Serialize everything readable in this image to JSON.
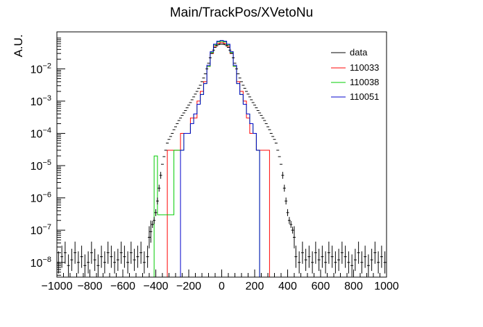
{
  "chart_data": {
    "type": "line",
    "title": "Main/TrackPos/XVetoNu",
    "xlabel": "",
    "ylabel": "A.U.",
    "xlim": [
      -1000,
      1000
    ],
    "ylim": [
      3.5e-09,
      0.14
    ],
    "yscale": "log",
    "grid": false,
    "legend_position": "top-right",
    "x_ticks": [
      -1000,
      -800,
      -600,
      -400,
      -200,
      0,
      200,
      400,
      600,
      800,
      1000
    ],
    "x_tick_labels": [
      "−1000",
      "−800",
      "−600",
      "−400",
      "−200",
      "0",
      "200",
      "400",
      "600",
      "800",
      "1000"
    ],
    "y_ticks": [
      {
        "value": 1e-08,
        "base": "10",
        "exp": "−8"
      },
      {
        "value": 1e-07,
        "base": "10",
        "exp": "−7"
      },
      {
        "value": 1e-06,
        "base": "10",
        "exp": "−6"
      },
      {
        "value": 1e-05,
        "base": "10",
        "exp": "−5"
      },
      {
        "value": 0.0001,
        "base": "10",
        "exp": "−4"
      },
      {
        "value": 0.001,
        "base": "10",
        "exp": "−3"
      },
      {
        "value": 0.01,
        "base": "10",
        "exp": "−2"
      }
    ],
    "data_series": {
      "name": "data",
      "color": "#000000",
      "points": [
        [
          -380,
          2e-06
        ],
        [
          -370,
          5e-06
        ],
        [
          -360,
          1.1e-05
        ],
        [
          -350,
          1.9e-05
        ],
        [
          -340,
          3e-05
        ],
        [
          -330,
          5e-05
        ],
        [
          -320,
          6.5e-05
        ],
        [
          -310,
          8e-05
        ],
        [
          -300,
          0.0001
        ],
        [
          -290,
          0.00013
        ],
        [
          -280,
          0.00016
        ],
        [
          -270,
          0.0002
        ],
        [
          -260,
          0.00025
        ],
        [
          -250,
          0.0003
        ],
        [
          -240,
          0.00036
        ],
        [
          -230,
          0.00043
        ],
        [
          -220,
          0.00051
        ],
        [
          -210,
          0.00062
        ],
        [
          -200,
          0.00075
        ],
        [
          -190,
          0.0009
        ],
        [
          -180,
          0.0011
        ],
        [
          -170,
          0.00135
        ],
        [
          -160,
          0.00165
        ],
        [
          -150,
          0.002
        ],
        [
          -140,
          0.0025
        ],
        [
          -130,
          0.0031
        ],
        [
          -120,
          0.004
        ],
        [
          -110,
          0.0052
        ],
        [
          -100,
          0.007
        ],
        [
          -90,
          0.01
        ],
        [
          -80,
          0.015
        ],
        [
          -70,
          0.022
        ],
        [
          -60,
          0.03
        ],
        [
          -50,
          0.038
        ],
        [
          -40,
          0.046
        ],
        [
          -30,
          0.052
        ],
        [
          -20,
          0.056
        ],
        [
          -10,
          0.058
        ],
        [
          0,
          0.059
        ],
        [
          10,
          0.058
        ],
        [
          20,
          0.056
        ],
        [
          30,
          0.052
        ],
        [
          40,
          0.046
        ],
        [
          50,
          0.038
        ],
        [
          60,
          0.03
        ],
        [
          70,
          0.022
        ],
        [
          80,
          0.015
        ],
        [
          90,
          0.01
        ],
        [
          100,
          0.007
        ],
        [
          110,
          0.0052
        ],
        [
          120,
          0.004
        ],
        [
          130,
          0.0031
        ],
        [
          140,
          0.0025
        ],
        [
          150,
          0.002
        ],
        [
          160,
          0.00165
        ],
        [
          170,
          0.00135
        ],
        [
          180,
          0.0011
        ],
        [
          190,
          0.0009
        ],
        [
          200,
          0.00075
        ],
        [
          210,
          0.00062
        ],
        [
          220,
          0.00051
        ],
        [
          230,
          0.00043
        ],
        [
          240,
          0.00036
        ],
        [
          250,
          0.0003
        ],
        [
          260,
          0.00025
        ],
        [
          270,
          0.0002
        ],
        [
          280,
          0.00016
        ],
        [
          290,
          0.00013
        ],
        [
          300,
          0.0001
        ],
        [
          310,
          8e-05
        ],
        [
          320,
          6.5e-05
        ],
        [
          330,
          5e-05
        ],
        [
          340,
          3e-05
        ],
        [
          350,
          1.9e-05
        ],
        [
          360,
          1.1e-05
        ],
        [
          370,
          5e-06
        ],
        [
          380,
          2e-06
        ],
        [
          390,
          8e-07
        ],
        [
          400,
          3.5e-07
        ],
        [
          410,
          2e-07
        ],
        [
          420,
          1.5e-07
        ],
        [
          430,
          1e-07
        ],
        [
          440,
          6e-08
        ],
        [
          -390,
          8e-07
        ],
        [
          -400,
          3.5e-07
        ],
        [
          -410,
          2e-07
        ],
        [
          -420,
          1.5e-07
        ],
        [
          -430,
          9e-08
        ],
        [
          -440,
          6e-08
        ],
        [
          -990,
          1e-08
        ],
        [
          -970,
          1.5e-08
        ],
        [
          -950,
          2e-08
        ],
        [
          -930,
          8e-09
        ],
        [
          -910,
          1.2e-08
        ],
        [
          -890,
          2e-08
        ],
        [
          -870,
          1e-08
        ],
        [
          -850,
          1.5e-08
        ],
        [
          -830,
          8e-09
        ],
        [
          -810,
          1e-08
        ],
        [
          -790,
          2e-08
        ],
        [
          -770,
          1.2e-08
        ],
        [
          -750,
          8e-09
        ],
        [
          -730,
          1.5e-08
        ],
        [
          -710,
          1e-08
        ],
        [
          -690,
          2e-08
        ],
        [
          -670,
          1.5e-08
        ],
        [
          -650,
          1e-08
        ],
        [
          -630,
          1.2e-08
        ],
        [
          -610,
          2e-08
        ],
        [
          -590,
          1.5e-08
        ],
        [
          -570,
          1e-08
        ],
        [
          -550,
          2e-08
        ],
        [
          -530,
          1.2e-08
        ],
        [
          -510,
          1.5e-08
        ],
        [
          -490,
          2e-08
        ],
        [
          -470,
          1e-08
        ],
        [
          -450,
          1.5e-08
        ],
        [
          450,
          1.5e-08
        ],
        [
          470,
          1e-08
        ],
        [
          490,
          2e-08
        ],
        [
          510,
          1.2e-08
        ],
        [
          530,
          1.5e-08
        ],
        [
          550,
          1e-08
        ],
        [
          570,
          2e-08
        ],
        [
          590,
          1.2e-08
        ],
        [
          610,
          1.5e-08
        ],
        [
          630,
          1e-08
        ],
        [
          650,
          2e-08
        ],
        [
          670,
          1.5e-08
        ],
        [
          690,
          1e-08
        ],
        [
          710,
          1.2e-08
        ],
        [
          730,
          2e-08
        ],
        [
          750,
          1.5e-08
        ],
        [
          770,
          1e-08
        ],
        [
          790,
          8e-09
        ],
        [
          810,
          1.2e-08
        ],
        [
          830,
          2e-08
        ],
        [
          850,
          1e-08
        ],
        [
          870,
          1.5e-08
        ],
        [
          890,
          8e-09
        ],
        [
          910,
          1.2e-08
        ],
        [
          930,
          2e-08
        ],
        [
          950,
          1e-08
        ],
        [
          970,
          1.5e-08
        ],
        [
          990,
          1e-08
        ]
      ]
    },
    "series": [
      {
        "name": "110033",
        "color": "#ff0000",
        "bins": [
          [
            -320,
            3e-05
          ],
          [
            -300,
            3e-05
          ],
          [
            -280,
            3e-05
          ],
          [
            -260,
            3e-05
          ],
          [
            -240,
            0.0001
          ],
          [
            -220,
            0.0001
          ],
          [
            -200,
            0.0001
          ],
          [
            -180,
            0.0003
          ],
          [
            -160,
            0.0003
          ],
          [
            -140,
            0.001
          ],
          [
            -120,
            0.002
          ],
          [
            -100,
            0.004
          ],
          [
            -80,
            0.012
          ],
          [
            -60,
            0.03
          ],
          [
            -40,
            0.05
          ],
          [
            -20,
            0.062
          ],
          [
            0,
            0.066
          ],
          [
            20,
            0.062
          ],
          [
            40,
            0.05
          ],
          [
            60,
            0.03
          ],
          [
            80,
            0.012
          ],
          [
            100,
            0.004
          ],
          [
            120,
            0.002
          ],
          [
            140,
            0.001
          ],
          [
            160,
            0.0003
          ],
          [
            180,
            0.0001
          ],
          [
            200,
            0.0001
          ],
          [
            220,
            3e-05
          ],
          [
            240,
            3e-05
          ],
          [
            260,
            3e-05
          ],
          [
            280,
            3e-05
          ]
        ]
      },
      {
        "name": "110038",
        "color": "#00cc00",
        "bins": [
          [
            -400,
            2e-05
          ],
          [
            -380,
            3e-07
          ],
          [
            -360,
            3e-07
          ],
          [
            -340,
            3e-07
          ],
          [
            -320,
            3e-07
          ],
          [
            -300,
            3e-07
          ],
          [
            -280,
            3e-05
          ],
          [
            -260,
            3e-05
          ],
          [
            -240,
            3e-05
          ],
          [
            -220,
            0.0001
          ],
          [
            -200,
            0.0001
          ],
          [
            -180,
            0.0002
          ],
          [
            -160,
            0.0004
          ],
          [
            -140,
            0.0008
          ],
          [
            -120,
            0.0016
          ],
          [
            -100,
            0.0035
          ],
          [
            -80,
            0.012
          ],
          [
            -60,
            0.032
          ],
          [
            -40,
            0.055
          ],
          [
            -20,
            0.068
          ],
          [
            0,
            0.072
          ],
          [
            20,
            0.068
          ],
          [
            40,
            0.055
          ],
          [
            60,
            0.032
          ],
          [
            80,
            0.012
          ],
          [
            100,
            0.0035
          ],
          [
            120,
            0.0016
          ],
          [
            140,
            0.0008
          ],
          [
            160,
            0.0004
          ],
          [
            180,
            0.0002
          ],
          [
            200,
            0.0001
          ],
          [
            220,
            3e-05
          ]
        ]
      },
      {
        "name": "110051",
        "color": "#0000cc",
        "bins": [
          [
            -240,
            3e-05
          ],
          [
            -220,
            0.0001
          ],
          [
            -200,
            0.0001
          ],
          [
            -180,
            0.0002
          ],
          [
            -160,
            0.0004
          ],
          [
            -140,
            0.0008
          ],
          [
            -120,
            0.0016
          ],
          [
            -100,
            0.0035
          ],
          [
            -80,
            0.013
          ],
          [
            -60,
            0.034
          ],
          [
            -40,
            0.058
          ],
          [
            -20,
            0.072
          ],
          [
            0,
            0.076
          ],
          [
            20,
            0.072
          ],
          [
            40,
            0.058
          ],
          [
            60,
            0.034
          ],
          [
            80,
            0.013
          ],
          [
            100,
            0.0035
          ],
          [
            120,
            0.0016
          ],
          [
            140,
            0.0008
          ],
          [
            160,
            0.0004
          ],
          [
            180,
            0.0002
          ],
          [
            200,
            0.0001
          ],
          [
            220,
            3e-05
          ]
        ]
      }
    ]
  }
}
